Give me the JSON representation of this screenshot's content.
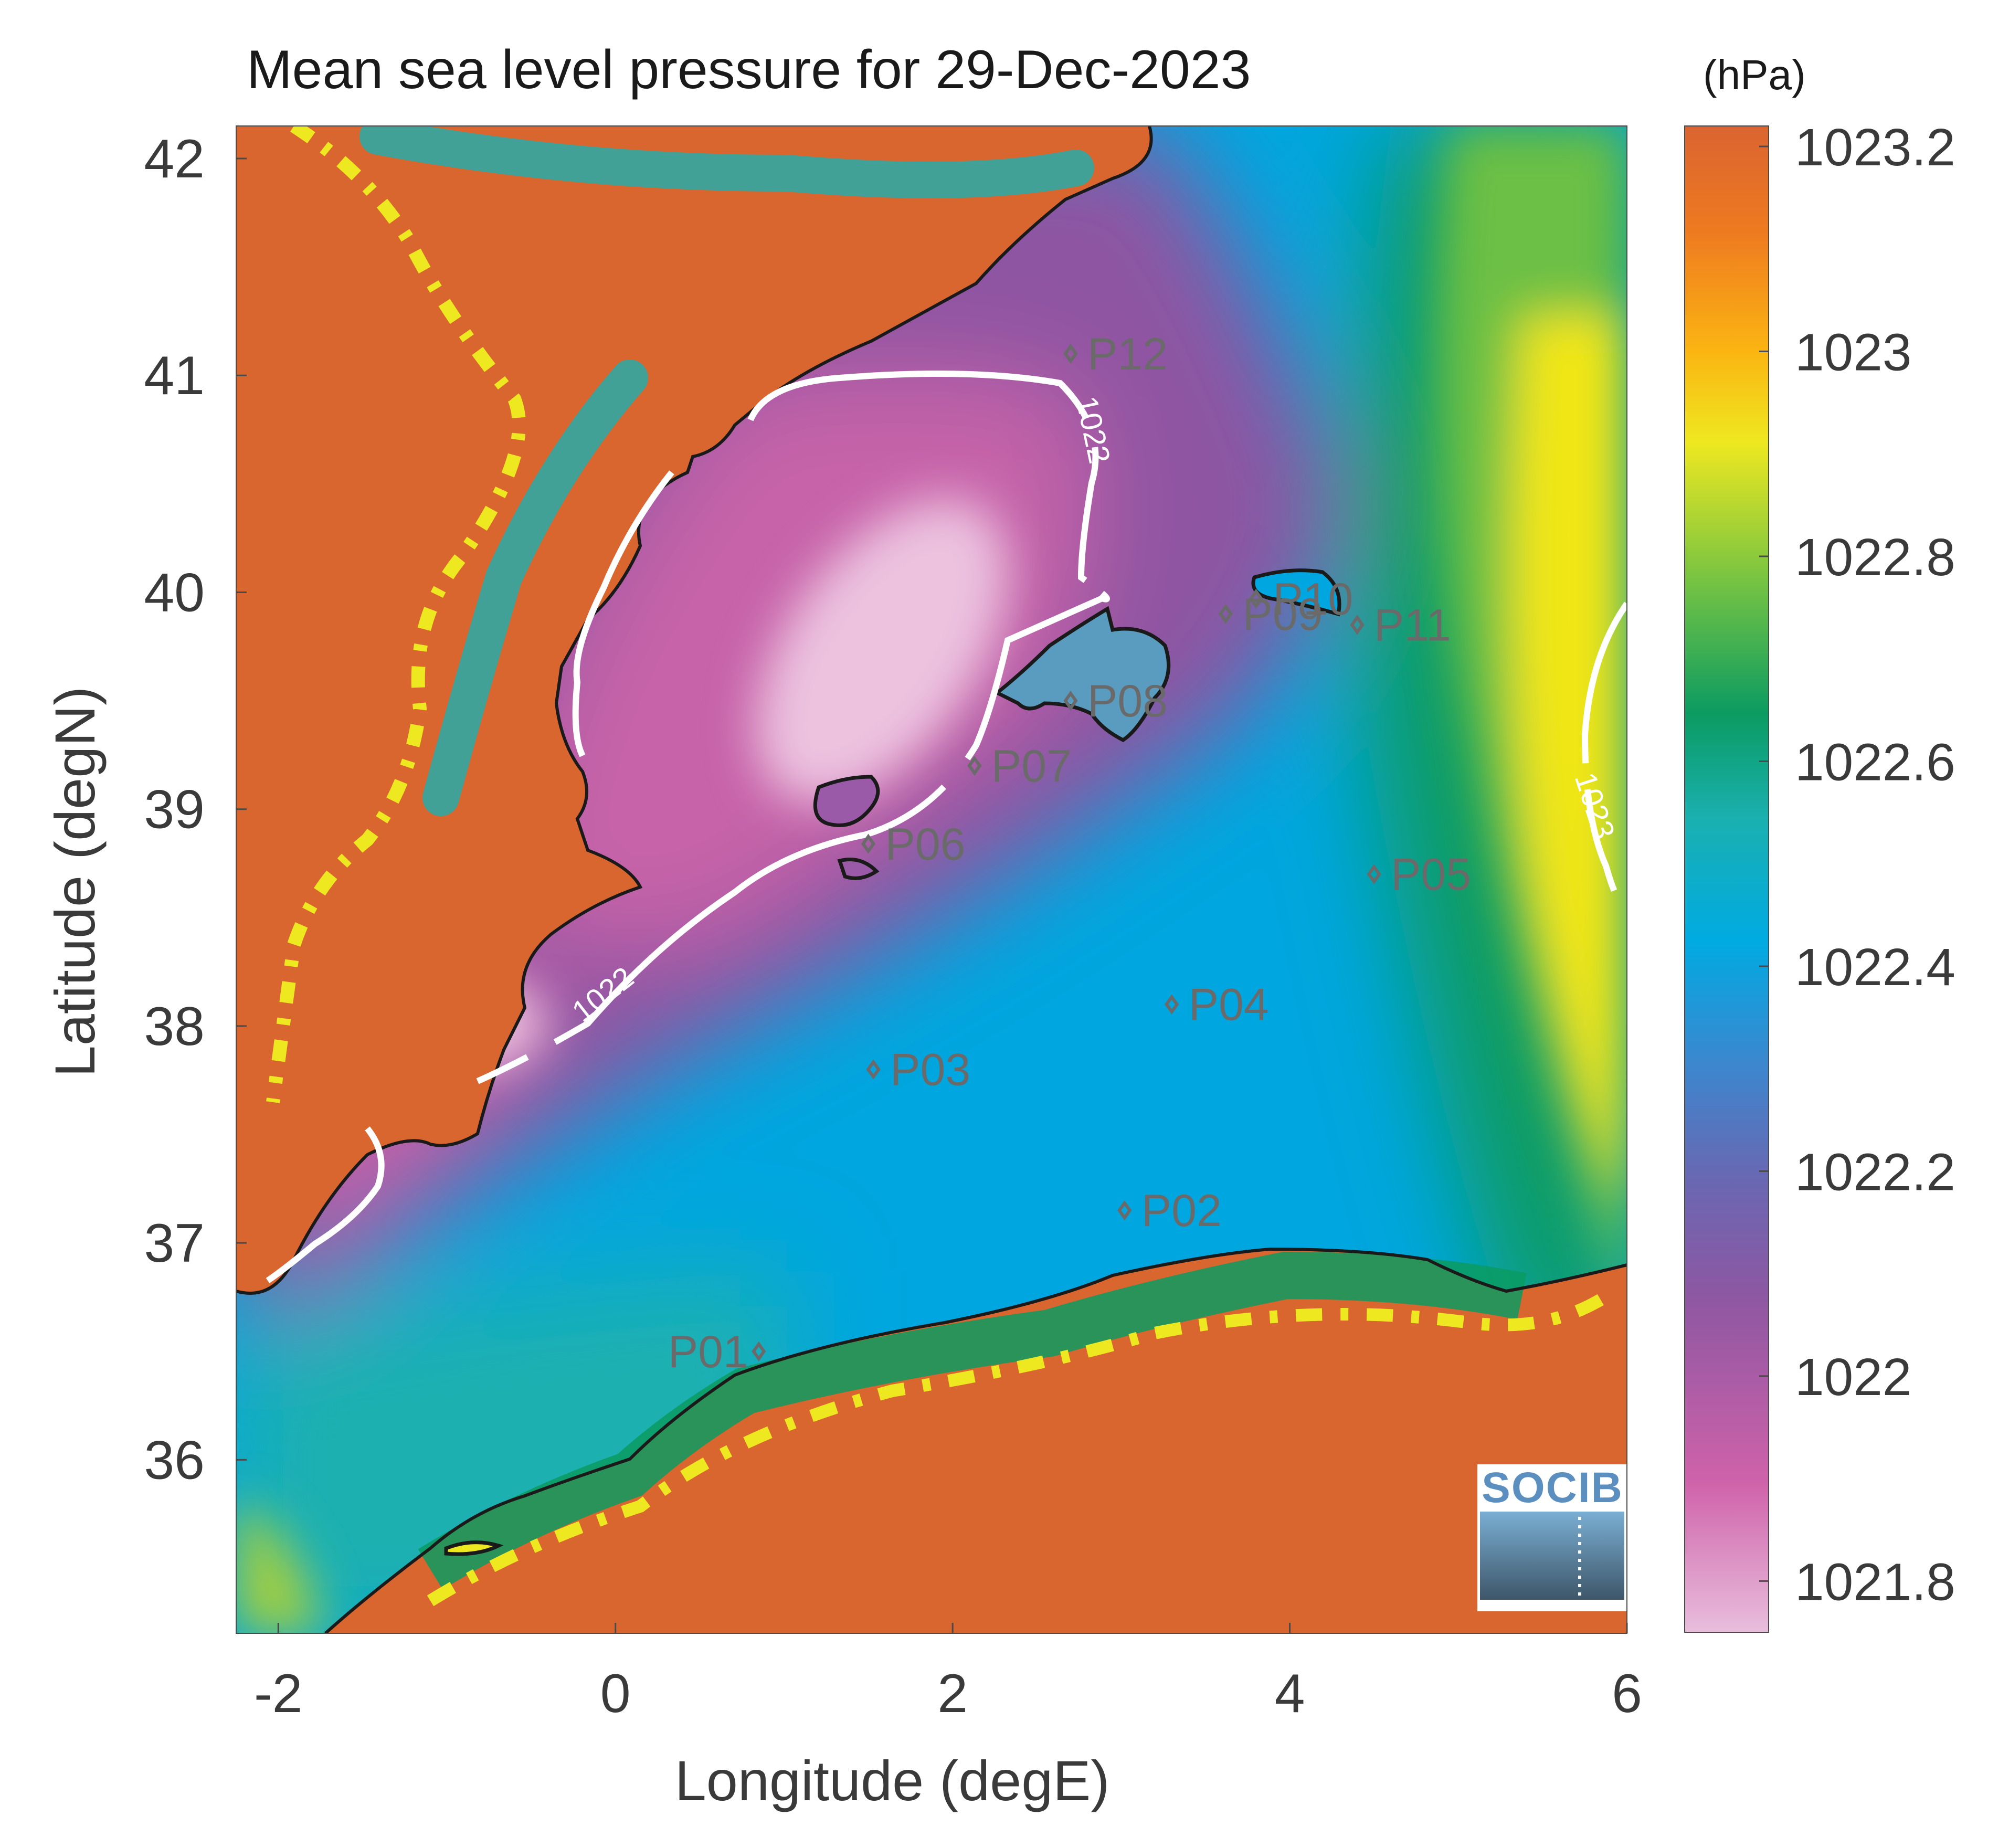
{
  "title": "Mean sea level pressure for 29-Dec-2023",
  "unit_label": "(hPa)",
  "x_axis": {
    "label": "Longitude (degE)",
    "range": [
      -2.25,
      6.0
    ],
    "ticks": [
      {
        "value": -2,
        "label": "-2"
      },
      {
        "value": 0,
        "label": "0"
      },
      {
        "value": 2,
        "label": "2"
      },
      {
        "value": 4,
        "label": "4"
      },
      {
        "value": 6,
        "label": "6"
      }
    ]
  },
  "y_axis": {
    "label": "Latitude (degN)",
    "range": [
      35.2,
      42.15
    ],
    "ticks": [
      {
        "value": 36,
        "label": "36"
      },
      {
        "value": 37,
        "label": "37"
      },
      {
        "value": 38,
        "label": "38"
      },
      {
        "value": 39,
        "label": "39"
      },
      {
        "value": 40,
        "label": "40"
      },
      {
        "value": 41,
        "label": "41"
      },
      {
        "value": 42,
        "label": "42"
      }
    ]
  },
  "colorbar": {
    "range": [
      1021.75,
      1023.22
    ],
    "ticks": [
      {
        "value": 1023.2,
        "label": "1023.2"
      },
      {
        "value": 1023.0,
        "label": "1023"
      },
      {
        "value": 1022.8,
        "label": "1022.8"
      },
      {
        "value": 1022.6,
        "label": "1022.6"
      },
      {
        "value": 1022.4,
        "label": "1022.4"
      },
      {
        "value": 1022.2,
        "label": "1022.2"
      },
      {
        "value": 1022.0,
        "label": "1022"
      },
      {
        "value": 1021.8,
        "label": "1021.8"
      }
    ],
    "colors": [
      "#e8bedc",
      "#cf62aa",
      "#8f57a2",
      "#6a67b2",
      "#3a88cf",
      "#00abe2",
      "#1ab0b0",
      "#0b9b62",
      "#6cc045",
      "#eee820",
      "#fbb512",
      "#ee7a20",
      "#da6430"
    ]
  },
  "colors": {
    "land": "#d9652f",
    "coastline": "#1a1a1a",
    "contour": "#ffffff",
    "station": "#6a6a6a"
  },
  "contours": [
    {
      "label": "1022"
    },
    {
      "label": "1022"
    },
    {
      "label": "1023"
    }
  ],
  "stations": [
    {
      "id": "P01",
      "lon": 0.85,
      "lat": 36.5
    },
    {
      "id": "P02",
      "lon": 3.02,
      "lat": 37.15
    },
    {
      "id": "P03",
      "lon": 1.53,
      "lat": 37.8
    },
    {
      "id": "P04",
      "lon": 3.3,
      "lat": 38.1
    },
    {
      "id": "P05",
      "lon": 4.5,
      "lat": 38.7
    },
    {
      "id": "P06",
      "lon": 1.5,
      "lat": 38.84
    },
    {
      "id": "P07",
      "lon": 2.13,
      "lat": 39.2
    },
    {
      "id": "P08",
      "lon": 2.7,
      "lat": 39.5
    },
    {
      "id": "P09",
      "lon": 3.62,
      "lat": 39.9
    },
    {
      "id": "P10",
      "lon": 3.8,
      "lat": 39.97
    },
    {
      "id": "P11",
      "lon": 4.4,
      "lat": 39.85
    },
    {
      "id": "P12",
      "lon": 2.7,
      "lat": 41.1
    }
  ],
  "logo": {
    "text": "SOCIB"
  }
}
